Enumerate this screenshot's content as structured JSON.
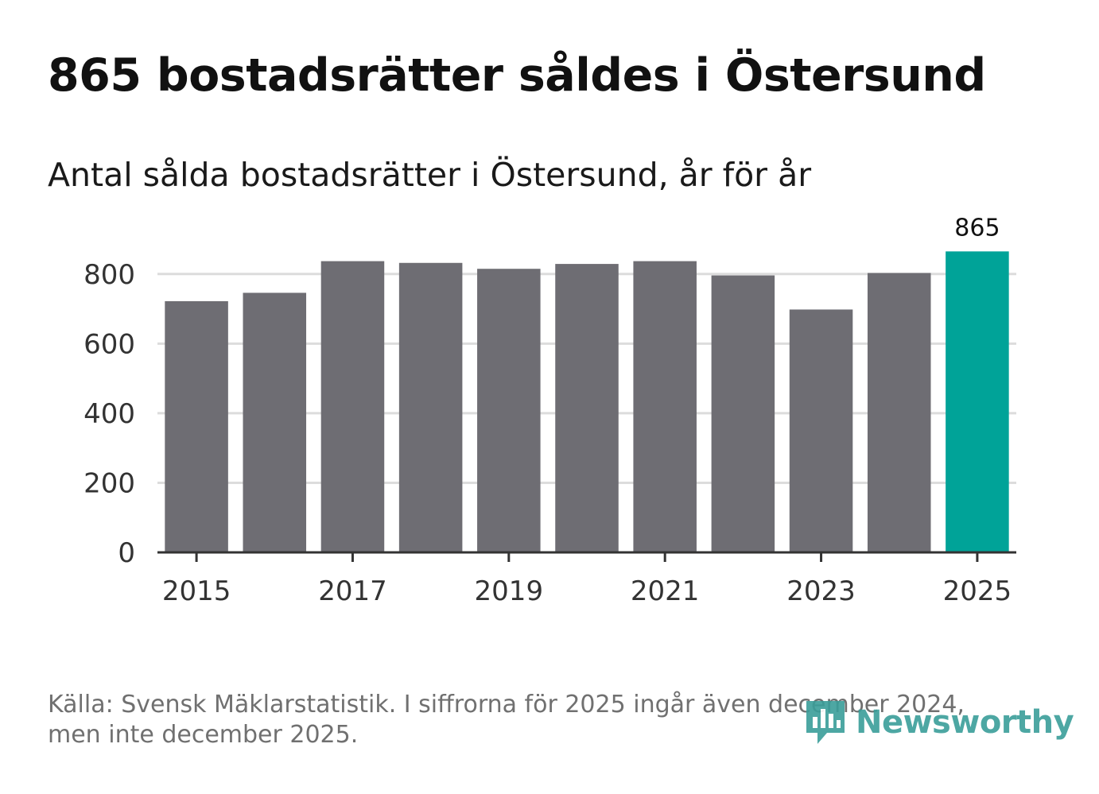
{
  "title": "865 bostadsrätter såldes i Östersund",
  "subtitle": "Antal sålda bostadsrätter i Östersund, år för år",
  "chart_data": {
    "type": "bar",
    "categories": [
      "2015",
      "2016",
      "2017",
      "2018",
      "2019",
      "2020",
      "2021",
      "2022",
      "2023",
      "2024",
      "2025"
    ],
    "values": [
      722,
      746,
      837,
      832,
      815,
      829,
      837,
      796,
      698,
      803,
      865
    ],
    "highlight_index": 10,
    "highlight_label": "865",
    "x_tick_labels": [
      "2015",
      "2017",
      "2019",
      "2021",
      "2023",
      "2025"
    ],
    "y_ticks": [
      0,
      200,
      400,
      600,
      800
    ],
    "ylim": [
      0,
      900
    ],
    "xlabel": "",
    "ylabel": "",
    "grid": true,
    "colors": {
      "bar": "#6e6d73",
      "highlight": "#00a398",
      "grid": "#dcdcdc",
      "axis": "#333333"
    }
  },
  "footer": {
    "line1": "Källa: Svensk Mäklarstatistik. I siffrorna för 2025 ingår även december 2024,",
    "line2": "men inte december 2025."
  },
  "logo": {
    "text": "Newsworthy",
    "icon": "chart-speech-bubble-icon",
    "color": "#3a9e9a"
  }
}
